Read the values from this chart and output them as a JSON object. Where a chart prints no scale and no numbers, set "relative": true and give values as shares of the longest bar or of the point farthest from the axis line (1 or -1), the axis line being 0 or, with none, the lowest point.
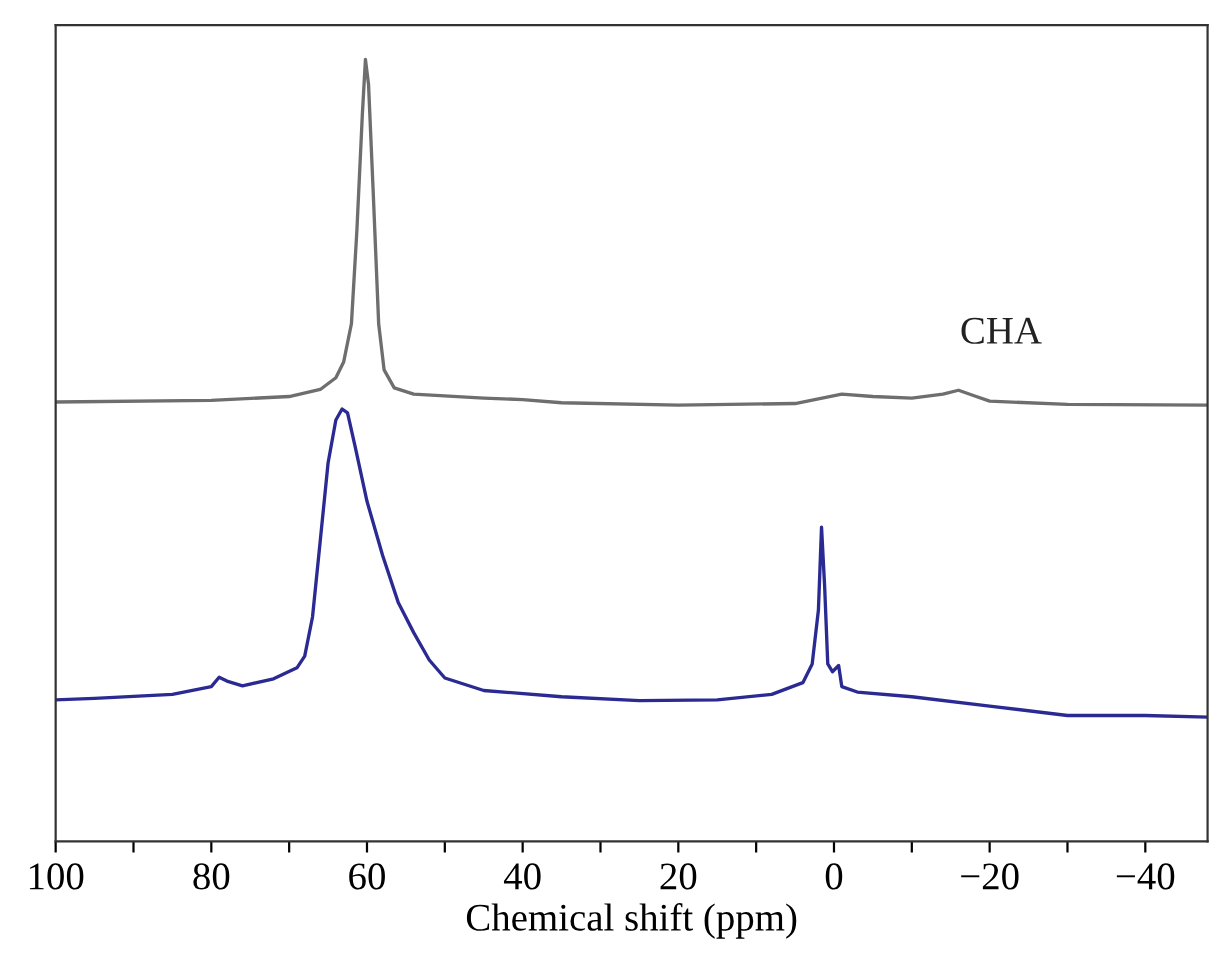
{
  "chart_data": {
    "type": "line",
    "relative": true,
    "xlabel": "Chemical shift (ppm)",
    "xlim": [
      100,
      -48
    ],
    "xticks": [
      100,
      {
        "value": 90,
        "label": null
      },
      80,
      {
        "value": 70,
        "label": null
      },
      60,
      {
        "value": 50,
        "label": null
      },
      40,
      {
        "value": 30,
        "label": null
      },
      20,
      {
        "value": 10,
        "label": null
      },
      0,
      {
        "value": -10,
        "label": null
      },
      {
        "value": -20,
        "label": "−20"
      },
      {
        "value": -30,
        "label": null
      },
      {
        "value": -40,
        "label": "−40"
      }
    ],
    "grid": false,
    "legend": false,
    "marker": "none",
    "line_style": "solid",
    "series": [
      {
        "name": "CHA",
        "color": "#6e6e6e",
        "x": [
          100,
          80,
          70,
          66,
          64,
          63,
          62,
          61.3,
          60.6,
          60.2,
          59.8,
          59.2,
          58.5,
          57.8,
          56.5,
          54,
          45,
          40,
          35,
          20,
          5,
          -1,
          -5,
          -10,
          -14,
          -16,
          -18,
          -20,
          -30,
          -48
        ],
        "values": [
          0.562,
          0.564,
          0.569,
          0.578,
          0.593,
          0.613,
          0.662,
          0.781,
          0.929,
          1.0,
          0.968,
          0.83,
          0.662,
          0.603,
          0.58,
          0.572,
          0.567,
          0.565,
          0.561,
          0.558,
          0.56,
          0.572,
          0.569,
          0.567,
          0.572,
          0.577,
          0.57,
          0.563,
          0.559,
          0.558
        ]
      },
      {
        "color": "#2b2a93",
        "x": [
          100,
          95,
          85,
          80,
          79,
          78,
          76,
          72,
          69,
          68,
          67,
          66,
          65,
          64,
          63.2,
          62.5,
          61.5,
          60,
          58,
          56,
          54,
          52,
          50,
          45,
          35,
          25,
          15,
          8,
          4,
          2.8,
          2,
          1.6,
          1.2,
          0.8,
          0.2,
          -0.6,
          -1,
          -3,
          -10,
          -20,
          -30,
          -40,
          -48
        ],
        "values": [
          0.181,
          0.183,
          0.188,
          0.198,
          0.21,
          0.205,
          0.199,
          0.208,
          0.222,
          0.237,
          0.287,
          0.385,
          0.484,
          0.539,
          0.553,
          0.548,
          0.504,
          0.435,
          0.366,
          0.306,
          0.267,
          0.232,
          0.209,
          0.193,
          0.185,
          0.18,
          0.181,
          0.188,
          0.203,
          0.227,
          0.296,
          0.402,
          0.326,
          0.227,
          0.217,
          0.225,
          0.198,
          0.191,
          0.185,
          0.173,
          0.161,
          0.161,
          0.159
        ]
      }
    ]
  }
}
